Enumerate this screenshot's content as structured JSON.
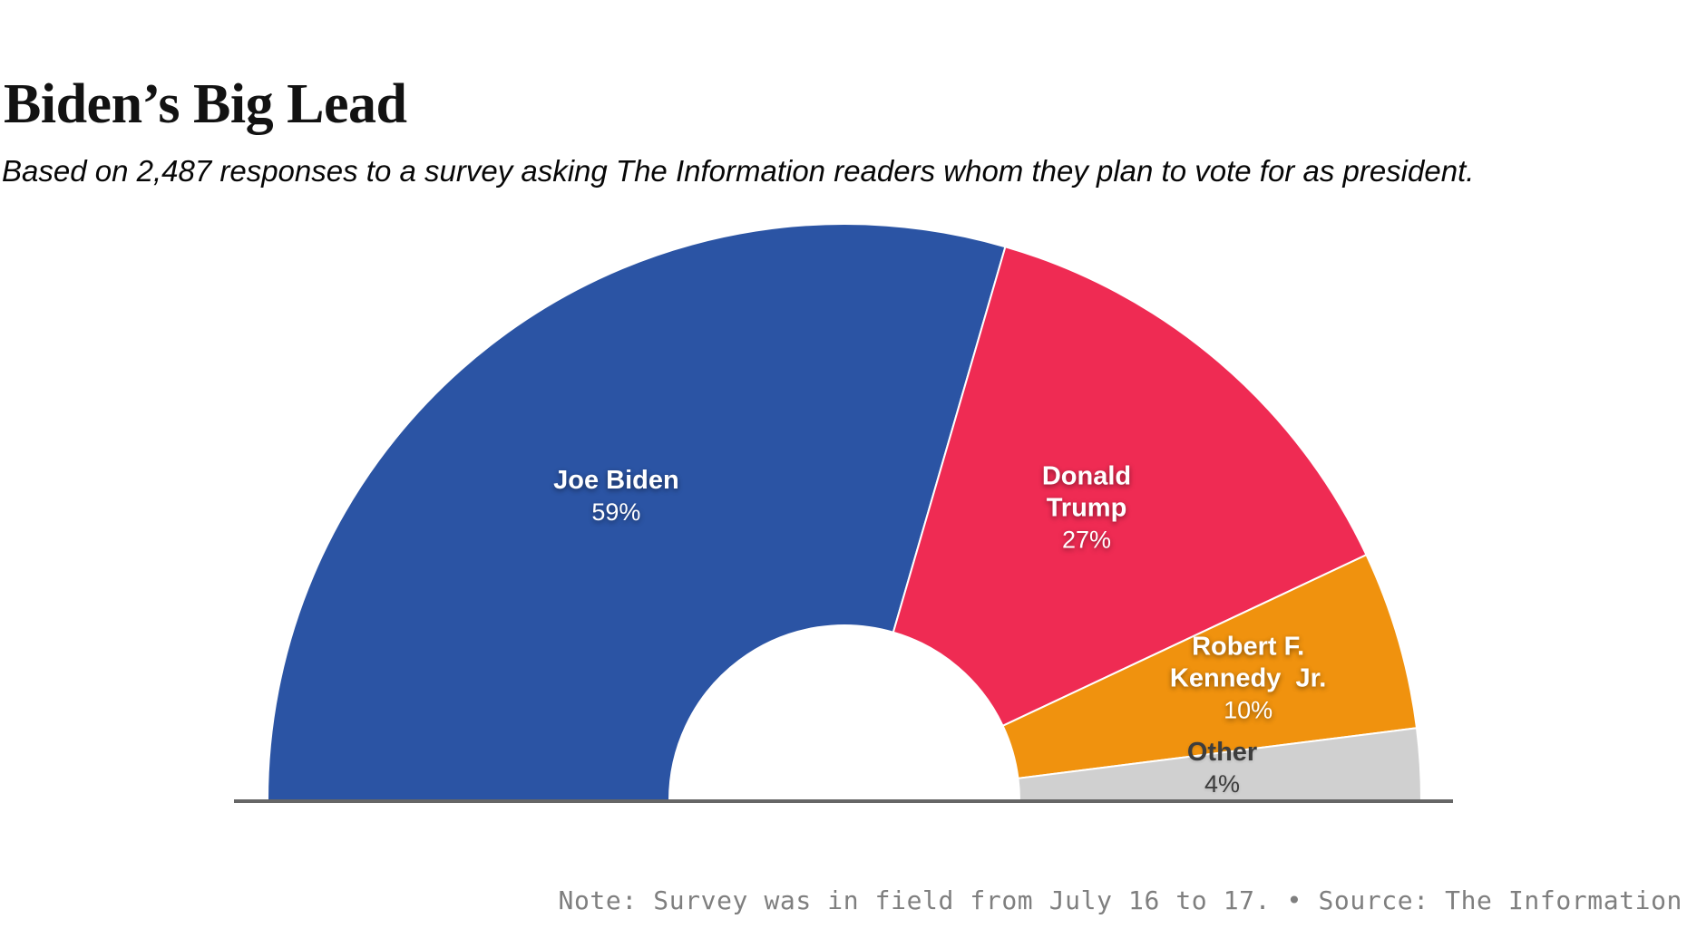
{
  "header": {
    "title": "Biden’s Big Lead",
    "subtitle": "Based on 2,487 responses to a survey asking The Information readers whom they plan to vote for as president."
  },
  "footer": {
    "note": "Note: Survey was in field from July 16 to 17. • Source: The Information"
  },
  "chart_data": {
    "type": "pie",
    "variant": "half-donut",
    "title": "Biden’s Big Lead",
    "unit": "%",
    "orientation": "semicircle-top",
    "legend": "labels-inside-slices",
    "segments": [
      {
        "label": "Joe Biden",
        "label_lines": [
          "Joe Biden"
        ],
        "value": 59,
        "pct_label": "59%",
        "color": "#2B54A4",
        "text_color": "#FFFFFF"
      },
      {
        "label": "Donald Trump",
        "label_lines": [
          "Donald",
          "Trump"
        ],
        "value": 27,
        "pct_label": "27%",
        "color": "#EF2B53",
        "text_color": "#FFFFFF"
      },
      {
        "label": "Robert F. Kennedy Jr.",
        "label_lines": [
          "Robert F.",
          "Kennedy  Jr."
        ],
        "value": 10,
        "pct_label": "10%",
        "color": "#F0920E",
        "text_color": "#FFFFFF"
      },
      {
        "label": "Other",
        "label_lines": [
          "Other"
        ],
        "value": 4,
        "pct_label": "4%",
        "color": "#D0D0D0",
        "text_color": "#3D3D3D"
      }
    ],
    "separator_color": "#FFFFFF",
    "baseline_color": "#666666"
  }
}
